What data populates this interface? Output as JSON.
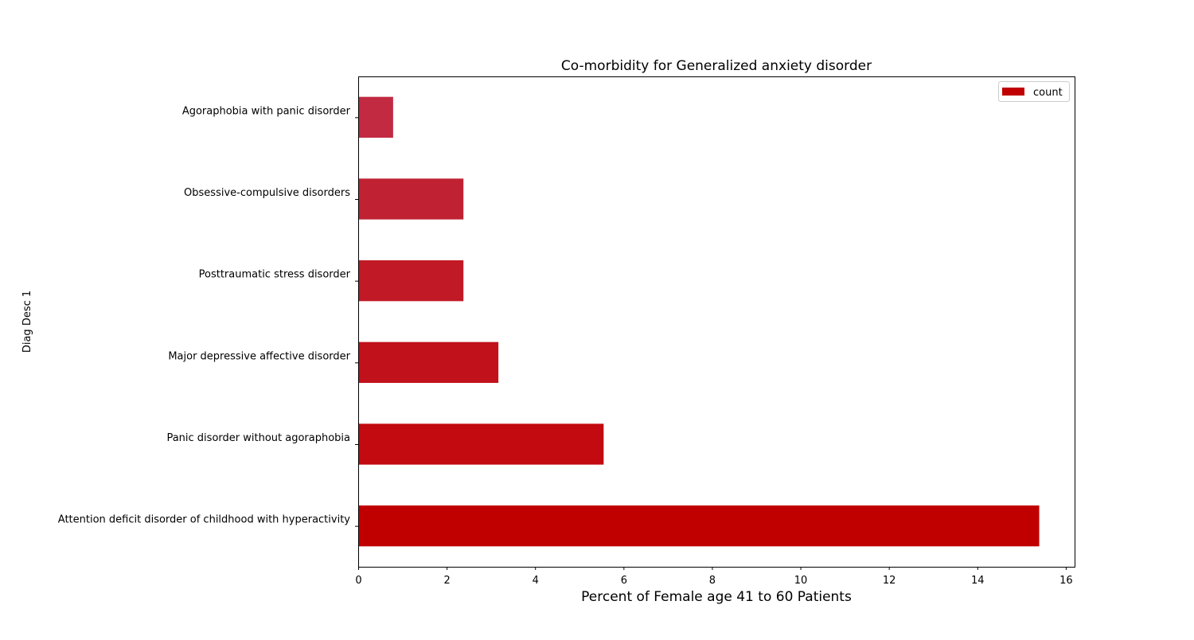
{
  "chart_data": {
    "type": "bar",
    "orientation": "horizontal",
    "title": "Co-morbidity for Generalized anxiety disorder",
    "xlabel": "Percent of Female age 41 to 60 Patients",
    "ylabel": "Diag Desc 1",
    "categories": [
      "Attention deficit disorder of childhood with hyperactivity",
      "Panic disorder without agoraphobia",
      "Major depressive affective disorder",
      "Posttraumatic stress disorder",
      "Obsessive-compulsive disorders",
      "Agoraphobia with panic disorder"
    ],
    "series": [
      {
        "name": "count",
        "values": [
          15.4,
          5.55,
          3.17,
          2.38,
          2.38,
          0.79
        ],
        "colors": [
          "#c00000",
          "#c20a10",
          "#c1111b",
          "#c11926",
          "#c02233",
          "#c12a41"
        ]
      }
    ],
    "xlim": [
      0,
      16.2
    ],
    "xticks": [
      0,
      2,
      4,
      6,
      8,
      10,
      12,
      14,
      16
    ],
    "grid": false,
    "legend": {
      "position": "top-right",
      "entries": [
        "count"
      ],
      "color": "#c00000"
    }
  }
}
